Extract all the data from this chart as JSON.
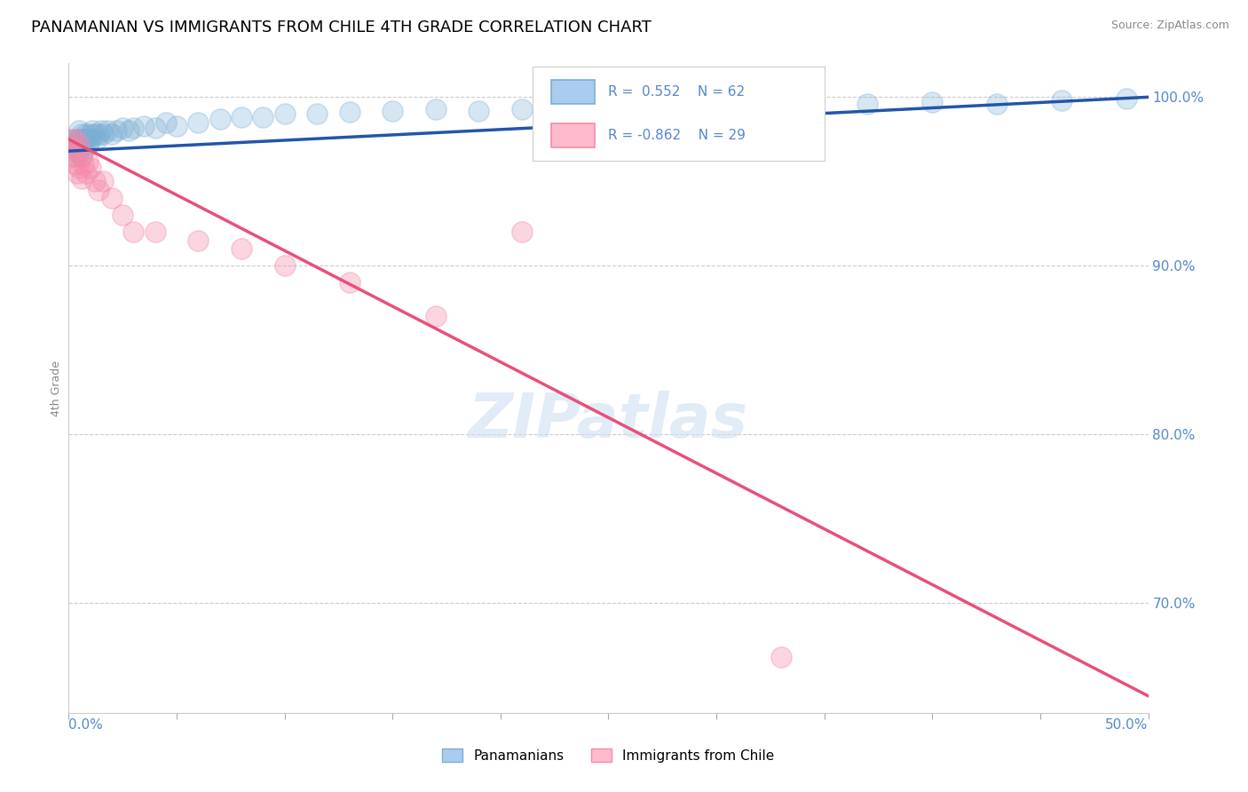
{
  "title": "PANAMANIAN VS IMMIGRANTS FROM CHILE 4TH GRADE CORRELATION CHART",
  "source": "Source: ZipAtlas.com",
  "ylabel": "4th Grade",
  "ylabel_right_labels": [
    "100.0%",
    "90.0%",
    "80.0%",
    "70.0%"
  ],
  "ylabel_right_values": [
    1.0,
    0.9,
    0.8,
    0.7
  ],
  "xmin": 0.0,
  "xmax": 0.5,
  "ymin": 0.635,
  "ymax": 1.02,
  "blue_R": 0.552,
  "blue_N": 62,
  "pink_R": -0.862,
  "pink_N": 29,
  "blue_color": "#7aaed4",
  "pink_color": "#f48aaa",
  "blue_line_color": "#2255aa",
  "pink_line_color": "#e8507a",
  "watermark": "ZIPatlas",
  "legend_label_blue": "Panamanians",
  "legend_label_pink": "Immigrants from Chile",
  "blue_scatter_x": [
    0.001,
    0.002,
    0.002,
    0.003,
    0.003,
    0.003,
    0.004,
    0.004,
    0.004,
    0.005,
    0.005,
    0.005,
    0.005,
    0.006,
    0.006,
    0.006,
    0.006,
    0.007,
    0.007,
    0.007,
    0.008,
    0.008,
    0.009,
    0.009,
    0.01,
    0.01,
    0.011,
    0.012,
    0.013,
    0.014,
    0.015,
    0.016,
    0.018,
    0.02,
    0.022,
    0.025,
    0.028,
    0.03,
    0.035,
    0.04,
    0.045,
    0.05,
    0.06,
    0.07,
    0.08,
    0.09,
    0.1,
    0.115,
    0.13,
    0.15,
    0.17,
    0.19,
    0.21,
    0.24,
    0.27,
    0.3,
    0.33,
    0.37,
    0.4,
    0.43,
    0.46,
    0.49
  ],
  "blue_scatter_y": [
    0.973,
    0.968,
    0.975,
    0.97,
    0.972,
    0.965,
    0.975,
    0.972,
    0.968,
    0.975,
    0.972,
    0.968,
    0.98,
    0.975,
    0.972,
    0.978,
    0.965,
    0.975,
    0.972,
    0.968,
    0.975,
    0.978,
    0.972,
    0.975,
    0.978,
    0.975,
    0.98,
    0.978,
    0.975,
    0.978,
    0.98,
    0.978,
    0.98,
    0.978,
    0.98,
    0.982,
    0.98,
    0.982,
    0.983,
    0.982,
    0.985,
    0.983,
    0.985,
    0.987,
    0.988,
    0.988,
    0.99,
    0.99,
    0.991,
    0.992,
    0.993,
    0.992,
    0.993,
    0.994,
    0.994,
    0.995,
    0.995,
    0.996,
    0.997,
    0.996,
    0.998,
    0.999
  ],
  "pink_scatter_x": [
    0.001,
    0.002,
    0.002,
    0.003,
    0.003,
    0.004,
    0.004,
    0.005,
    0.005,
    0.006,
    0.006,
    0.007,
    0.008,
    0.009,
    0.01,
    0.012,
    0.014,
    0.016,
    0.02,
    0.025,
    0.03,
    0.04,
    0.06,
    0.08,
    0.1,
    0.13,
    0.17,
    0.21,
    0.33
  ],
  "pink_scatter_y": [
    0.975,
    0.97,
    0.965,
    0.975,
    0.96,
    0.968,
    0.955,
    0.972,
    0.958,
    0.965,
    0.952,
    0.96,
    0.955,
    0.962,
    0.958,
    0.95,
    0.945,
    0.95,
    0.94,
    0.93,
    0.92,
    0.92,
    0.915,
    0.91,
    0.9,
    0.89,
    0.87,
    0.92,
    0.668
  ]
}
